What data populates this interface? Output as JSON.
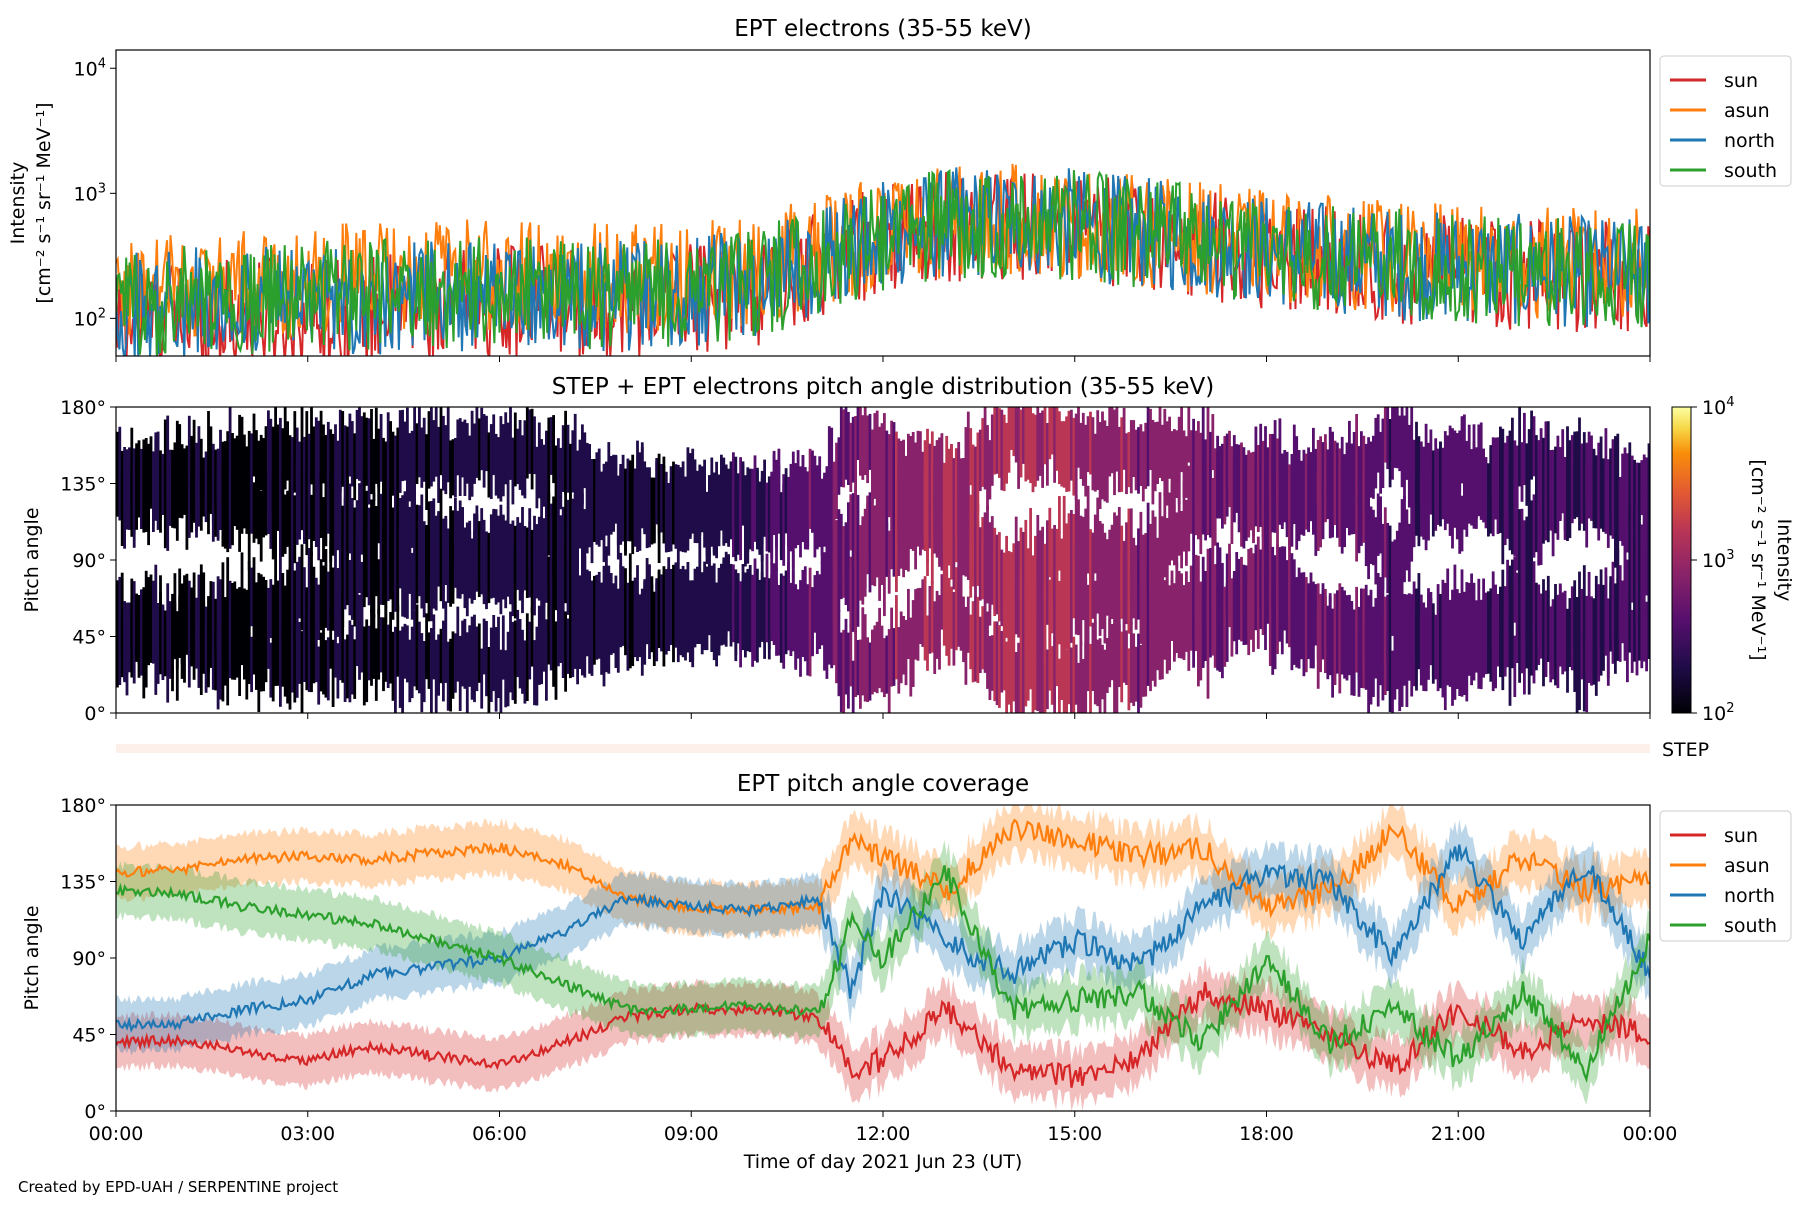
{
  "footer": {
    "credit": "Created by EPD-UAH / SERPENTINE project"
  },
  "colors": {
    "sun": "#d62728",
    "asun": "#ff7f0e",
    "north": "#1f77b4",
    "south": "#2ca02c",
    "step_bar": "#fdf0ea"
  },
  "chart_data": [
    {
      "type": "line",
      "title": "EPT electrons (35-55 keV)",
      "ylabel_line1": "Intensity",
      "ylabel_line2": "[cm⁻² s⁻¹ sr⁻¹ MeV⁻¹]",
      "yscale": "log",
      "ylim": [
        50,
        14000
      ],
      "yticks": [
        {
          "value": 100,
          "base": "10",
          "exp": "2"
        },
        {
          "value": 1000,
          "base": "10",
          "exp": "3"
        },
        {
          "value": 10000,
          "base": "10",
          "exp": "4"
        }
      ],
      "xlim": [
        "00:00",
        "24:00"
      ],
      "legend_position": "outside-right-top",
      "legend": [
        "sun",
        "asun",
        "north",
        "south"
      ],
      "series": [
        {
          "name": "sun",
          "x_hours": [
            0,
            2,
            4,
            6,
            8,
            10,
            11,
            12,
            13,
            14,
            15,
            16,
            18,
            20,
            22,
            24
          ],
          "values": [
            110,
            120,
            130,
            150,
            150,
            180,
            300,
            480,
            600,
            640,
            600,
            500,
            360,
            280,
            250,
            230
          ]
        },
        {
          "name": "asun",
          "x_hours": [
            0,
            2,
            4,
            6,
            8,
            10,
            11,
            12,
            13,
            14,
            15,
            16,
            18,
            20,
            22,
            24
          ],
          "values": [
            200,
            210,
            230,
            250,
            230,
            260,
            380,
            540,
            650,
            690,
            640,
            560,
            420,
            340,
            310,
            300
          ]
        },
        {
          "name": "north",
          "x_hours": [
            0,
            2,
            4,
            6,
            8,
            10,
            11,
            12,
            13,
            14,
            15,
            16,
            18,
            20,
            22,
            24
          ],
          "values": [
            140,
            150,
            160,
            170,
            170,
            200,
            330,
            520,
            640,
            680,
            630,
            540,
            390,
            300,
            270,
            250
          ]
        },
        {
          "name": "south",
          "x_hours": [
            0,
            2,
            4,
            6,
            8,
            10,
            11,
            12,
            13,
            14,
            15,
            16,
            18,
            20,
            22,
            24
          ],
          "values": [
            150,
            160,
            170,
            180,
            170,
            200,
            320,
            500,
            620,
            660,
            610,
            520,
            380,
            300,
            270,
            250
          ]
        }
      ]
    },
    {
      "type": "heatmap",
      "title": "STEP + EPT electrons pitch angle distribution (35-55 keV)",
      "ylabel": "Pitch angle",
      "ylim": [
        0,
        180
      ],
      "yticks": [
        "0°",
        "45°",
        "90°",
        "135°",
        "180°"
      ],
      "xlim": [
        "00:00",
        "24:00"
      ],
      "colorbar": {
        "label_line1": "Intensity",
        "label_line2": "[cm⁻² s⁻¹ sr⁻¹ MeV⁻¹]",
        "scale": "log",
        "range": [
          100,
          10000
        ],
        "ticks": [
          {
            "value": 100,
            "base": "10",
            "exp": "2"
          },
          {
            "value": 1000,
            "base": "10",
            "exp": "3"
          },
          {
            "value": 10000,
            "base": "10",
            "exp": "4"
          }
        ],
        "colormap": "inferno"
      },
      "step_label": "STEP"
    },
    {
      "type": "line",
      "title": "EPT pitch angle coverage",
      "ylabel": "Pitch angle",
      "xlabel": "Time of day 2021 Jun 23 (UT)",
      "ylim": [
        0,
        180
      ],
      "yticks": [
        "0°",
        "45°",
        "90°",
        "135°",
        "180°"
      ],
      "xticks": [
        "00:00",
        "03:00",
        "06:00",
        "09:00",
        "12:00",
        "15:00",
        "18:00",
        "21:00",
        "00:00"
      ],
      "legend_position": "outside-right-top",
      "legend": [
        "sun",
        "asun",
        "north",
        "south"
      ],
      "band_halfwidth_deg": 15,
      "series": [
        {
          "name": "sun",
          "x_hours": [
            0,
            1,
            2,
            3,
            4,
            5,
            6,
            7,
            8,
            9,
            10,
            11,
            11.5,
            12,
            13,
            14,
            15,
            16,
            17,
            18,
            19,
            20,
            21,
            22,
            23,
            24
          ],
          "values": [
            40,
            42,
            35,
            30,
            38,
            32,
            28,
            40,
            55,
            60,
            60,
            55,
            25,
            30,
            60,
            25,
            20,
            30,
            70,
            60,
            45,
            25,
            60,
            35,
            55,
            45
          ]
        },
        {
          "name": "asun",
          "x_hours": [
            0,
            1,
            2,
            3,
            4,
            5,
            6,
            7,
            8,
            9,
            10,
            11,
            11.5,
            12,
            13,
            14,
            15,
            16,
            17,
            18,
            19,
            20,
            21,
            22,
            23,
            24
          ],
          "values": [
            140,
            142,
            148,
            150,
            148,
            152,
            155,
            145,
            125,
            120,
            118,
            120,
            160,
            150,
            130,
            165,
            160,
            150,
            155,
            120,
            130,
            165,
            120,
            150,
            130,
            135
          ]
        },
        {
          "name": "north",
          "x_hours": [
            0,
            1,
            2,
            3,
            4,
            5,
            6,
            7,
            8,
            9,
            10,
            11,
            11.5,
            12,
            13,
            14,
            15,
            16,
            17,
            18,
            19,
            20,
            21,
            22,
            23,
            24
          ],
          "values": [
            50,
            52,
            60,
            65,
            80,
            85,
            90,
            105,
            125,
            120,
            118,
            125,
            70,
            130,
            100,
            80,
            100,
            85,
            120,
            140,
            135,
            90,
            155,
            100,
            145,
            80
          ]
        },
        {
          "name": "south",
          "x_hours": [
            0,
            1,
            2,
            3,
            4,
            5,
            6,
            7,
            8,
            9,
            10,
            11,
            11.5,
            12,
            13,
            14,
            15,
            16,
            17,
            18,
            19,
            20,
            21,
            22,
            23,
            24
          ],
          "values": [
            130,
            128,
            120,
            115,
            110,
            100,
            90,
            75,
            60,
            60,
            62,
            58,
            110,
            90,
            140,
            60,
            65,
            70,
            40,
            90,
            40,
            60,
            30,
            70,
            25,
            100
          ]
        }
      ]
    }
  ]
}
